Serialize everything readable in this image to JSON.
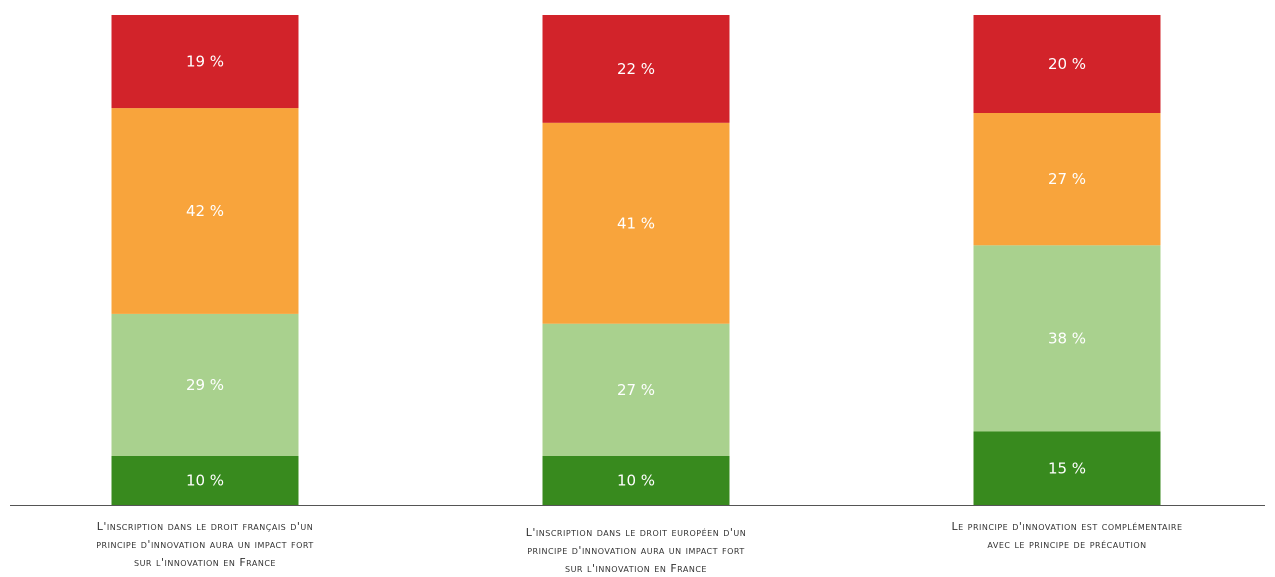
{
  "chart_data": {
    "type": "bar",
    "stacked": true,
    "stack_mode": "percent",
    "categories": [
      [
        "L'inscription dans le droit français d'un",
        "principe d'innovation aura un impact fort",
        "sur l'innovation en France"
      ],
      [
        "L'inscription dans le droit européen d'un",
        "principe d'innovation aura un impact fort",
        "sur l'innovation en France"
      ],
      [
        "Le principe d'innovation est complémentaire",
        "avec le principe de précaution"
      ]
    ],
    "series": [
      {
        "color": "#388a1e",
        "text_color": "#ffffff",
        "values": [
          10,
          10,
          15
        ],
        "labels": [
          "10 %",
          "10 %",
          "15 %"
        ]
      },
      {
        "color": "#a9d18e",
        "text_color": "#ffffff",
        "values": [
          29,
          27,
          38
        ],
        "labels": [
          "29 %",
          "27 %",
          "38 %"
        ]
      },
      {
        "color": "#f8a43c",
        "text_color": "#ffffff",
        "values": [
          42,
          41,
          27
        ],
        "labels": [
          "42 %",
          "41 %",
          "27 %"
        ]
      },
      {
        "color": "#d2232a",
        "text_color": "#ffffff",
        "values": [
          19,
          22,
          20
        ],
        "labels": [
          "19 %",
          "22 %",
          "20 %"
        ]
      }
    ],
    "axis_line_color": "#555555",
    "grid": false,
    "legend": "none"
  }
}
